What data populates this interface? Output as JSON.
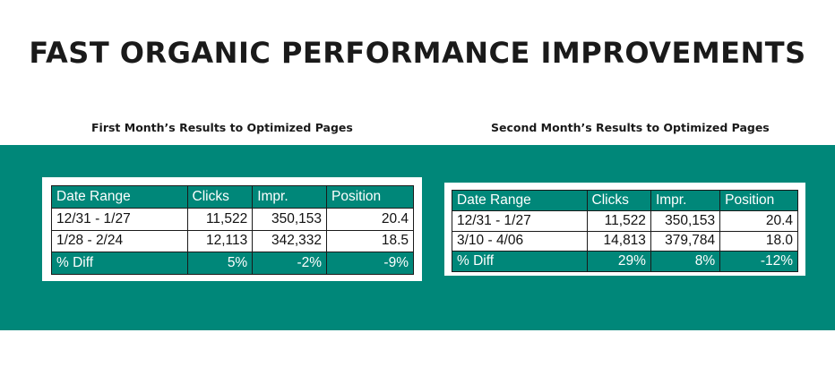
{
  "title": "FAST ORGANIC PERFORMANCE IMPROVEMENTS",
  "colors": {
    "accent": "#008779",
    "text": "#1a1a1a",
    "background": "#ffffff"
  },
  "tables": [
    {
      "caption": "First Month’s Results to Optimized Pages",
      "headers": [
        "Date Range",
        "Clicks",
        "Impr.",
        "Position"
      ],
      "rows": [
        [
          "12/31 - 1/27",
          "11,522",
          "350,153",
          "20.4"
        ],
        [
          "1/28 - 2/24",
          "12,113",
          "342,332",
          "18.5"
        ]
      ],
      "diff": [
        "% Diff",
        "5%",
        "-2%",
        "-9%"
      ]
    },
    {
      "caption": "Second Month’s Results to Optimized Pages",
      "headers": [
        "Date Range",
        "Clicks",
        "Impr.",
        "Position"
      ],
      "rows": [
        [
          "12/31 - 1/27",
          "11,522",
          "350,153",
          "20.4"
        ],
        [
          "3/10 - 4/06",
          "14,813",
          "379,784",
          "18.0"
        ]
      ],
      "diff": [
        "% Diff",
        "29%",
        "8%",
        "-12%"
      ]
    }
  ]
}
